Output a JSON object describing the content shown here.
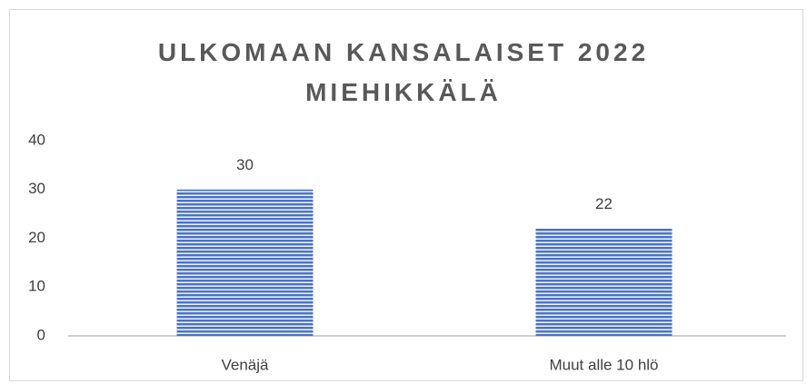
{
  "chart_data": {
    "type": "bar",
    "title": "ULKOMAAN KANSALAISET 2022 MIEHIKKÄLÄ",
    "categories": [
      "Venäjä",
      "Muut alle 10 hlö"
    ],
    "values": [
      30,
      22
    ],
    "color": "#4a72c4",
    "ylim": [
      0,
      40
    ],
    "yticks": [
      0,
      10,
      20,
      30,
      40
    ],
    "grid": false
  }
}
